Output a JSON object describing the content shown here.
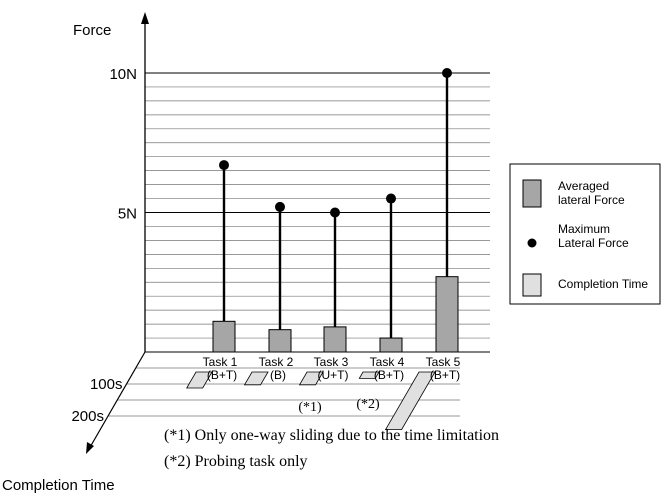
{
  "chart_data": {
    "type": "bar",
    "y_axis_label": "Force",
    "y_ticks": [
      {
        "value": 5,
        "label": "5N"
      },
      {
        "value": 10,
        "label": "10N"
      }
    ],
    "ylim": [
      0,
      10.5
    ],
    "depth_axis_label": "Completion Time",
    "depth_ticks": [
      {
        "value": 100,
        "label": "100s"
      },
      {
        "value": 200,
        "label": "200s"
      }
    ],
    "categories": [
      {
        "name": "Task 1",
        "sub": "(B+T)"
      },
      {
        "name": "Task 2",
        "sub": "(B)"
      },
      {
        "name": "Task 3",
        "sub": "(U+T)"
      },
      {
        "name": "Task 4",
        "sub": "(B+T)"
      },
      {
        "name": "Task 5",
        "sub": "(B+T)"
      }
    ],
    "series": [
      {
        "name": "Averaged lateral Force",
        "kind": "bar",
        "color": "#a6a6a6",
        "values": [
          1.1,
          0.8,
          0.9,
          0.5,
          2.7
        ]
      },
      {
        "name": "Maximum Lateral Force",
        "kind": "lollipop",
        "color": "#000000",
        "values": [
          6.7,
          5.2,
          5.0,
          5.5,
          10.0
        ]
      },
      {
        "name": "Completion Time",
        "kind": "depth-bar",
        "color": "#e0e0e0",
        "values": [
          50,
          40,
          40,
          20,
          180
        ]
      }
    ],
    "annotations": [
      {
        "mark": "(*1)",
        "category": "Task 3",
        "text": "(*1) Only one-way sliding due to the time limitation"
      },
      {
        "mark": "(*2)",
        "category": "Task 4",
        "text": "(*2) Probing task only"
      }
    ],
    "legend": {
      "position": "right",
      "entries": [
        {
          "label_lines": [
            "Averaged",
            "lateral Force"
          ],
          "marker": "bar"
        },
        {
          "label_lines": [
            "Maximum",
            "Lateral Force"
          ],
          "marker": "dot"
        },
        {
          "label_lines": [
            "Completion Time"
          ],
          "marker": "depth-bar"
        }
      ]
    }
  }
}
